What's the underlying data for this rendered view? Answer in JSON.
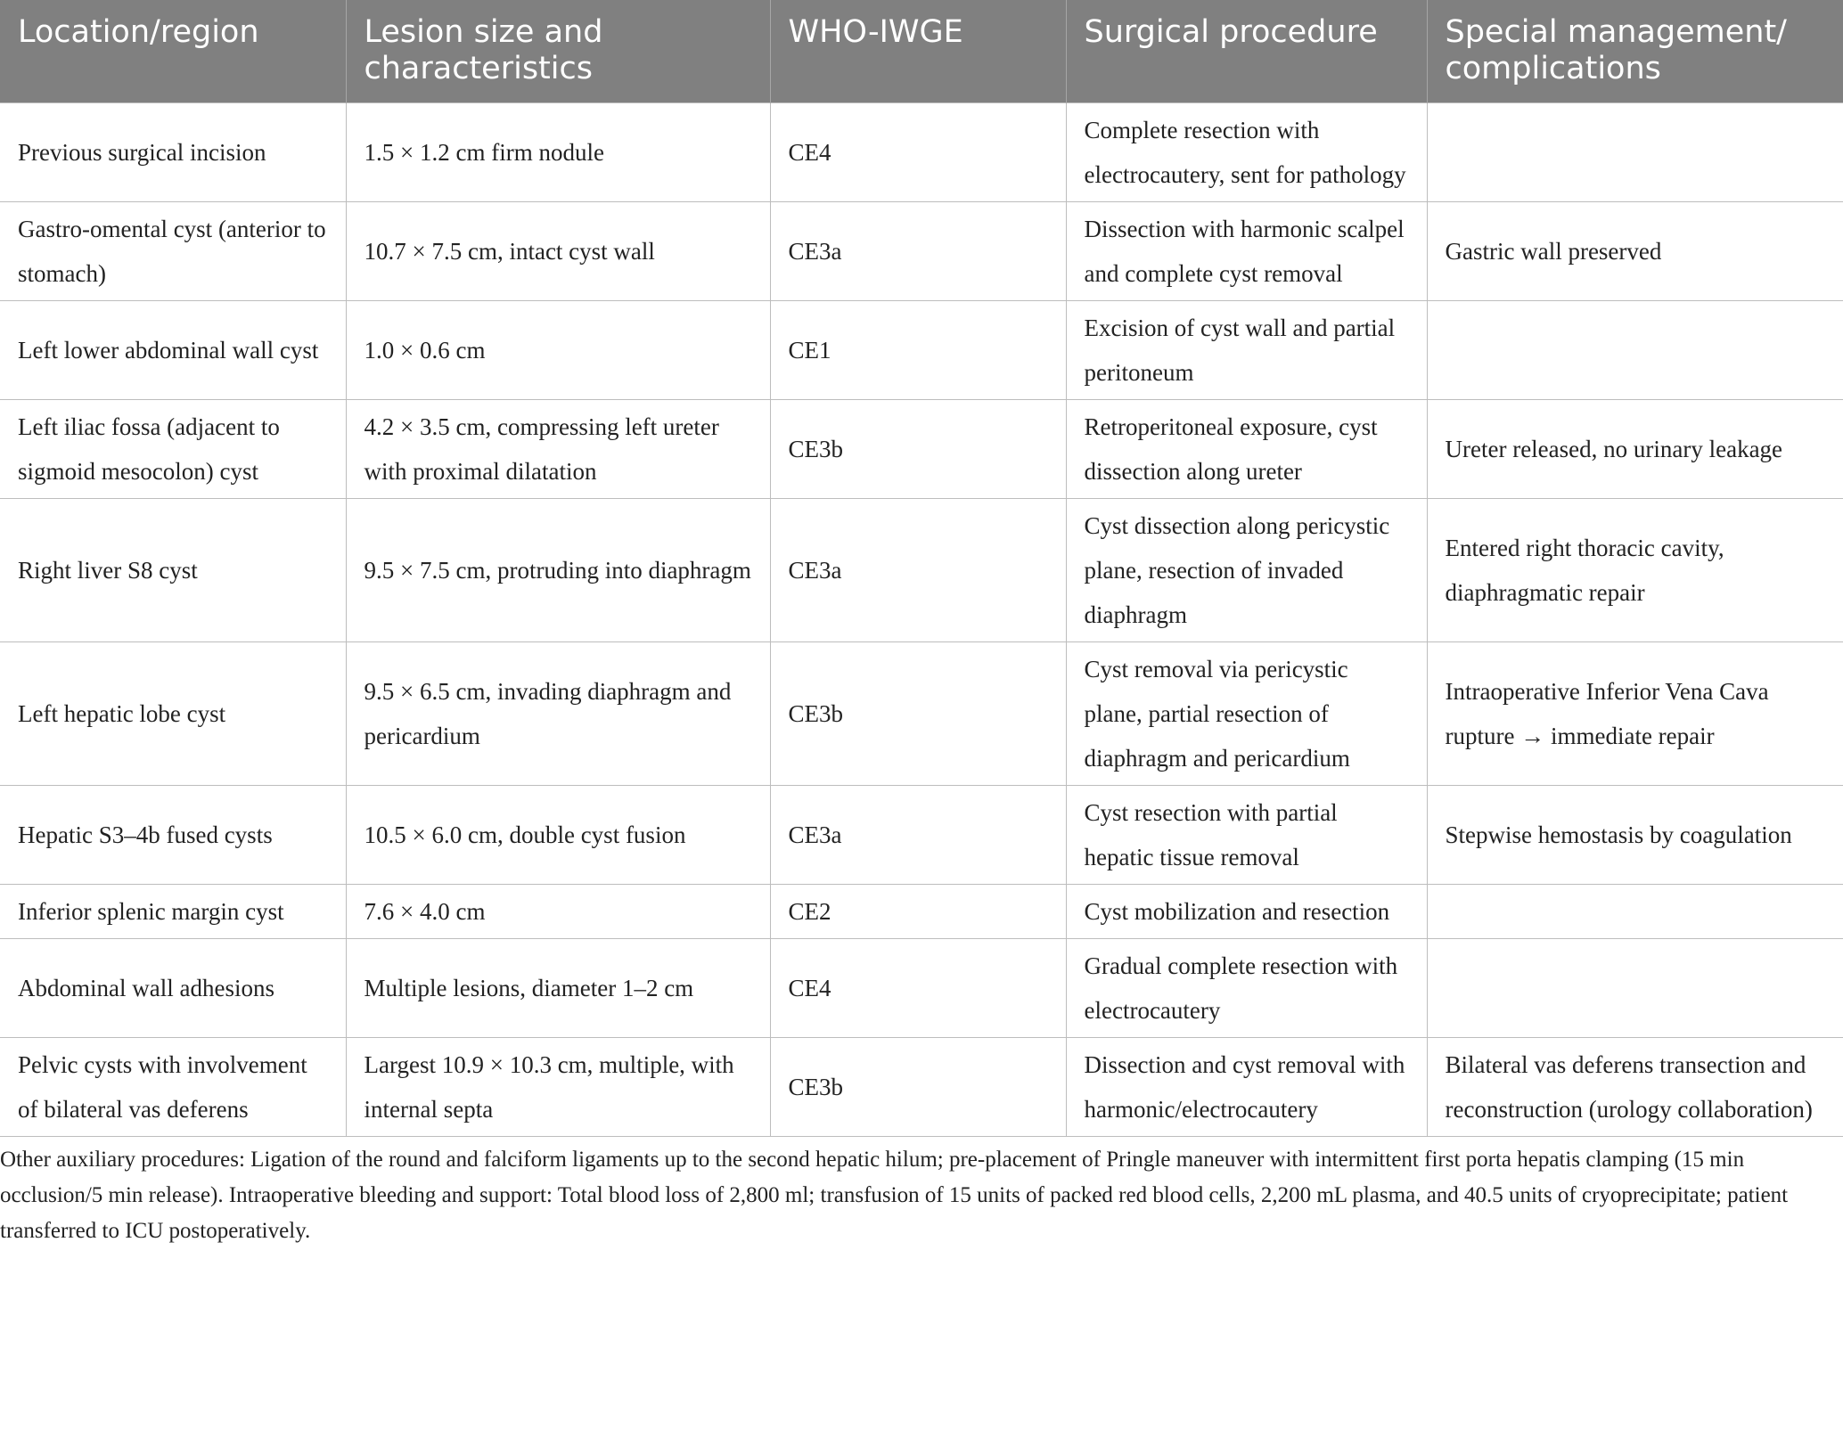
{
  "table": {
    "header": [
      "Location/region",
      "Lesion size and characteristics",
      "WHO-IWGE",
      "Surgical procedure",
      "Special management/ complications"
    ],
    "rows": [
      [
        "Previous surgical incision",
        "1.5 × 1.2 cm firm nodule",
        "CE4",
        "Complete resection with electrocautery, sent for pathology",
        null
      ],
      [
        "Gastro-omental cyst (anterior to stomach)",
        "10.7 × 7.5 cm, intact cyst wall",
        "CE3a",
        "Dissection with harmonic scalpel and complete cyst removal",
        "Gastric wall preserved"
      ],
      [
        "Left lower abdominal wall cyst",
        "1.0 × 0.6 cm",
        "CE1",
        "Excision of cyst wall and partial peritoneum",
        null
      ],
      [
        "Left iliac fossa (adjacent to sigmoid mesocolon) cyst",
        "4.2 × 3.5 cm, compressing left ureter with proximal dilatation",
        "CE3b",
        "Retroperitoneal exposure, cyst dissection along ureter",
        "Ureter released, no urinary leakage"
      ],
      [
        "Right liver S8 cyst",
        "9.5 × 7.5 cm, protruding into diaphragm",
        "CE3a",
        "Cyst dissection along pericystic plane, resection of invaded diaphragm",
        "Entered right thoracic cavity, diaphragmatic repair"
      ],
      [
        "Left hepatic lobe cyst",
        "9.5 × 6.5 cm, invading diaphragm and pericardium",
        "CE3b",
        "Cyst removal via pericystic plane, partial resection of diaphragm and pericardium",
        "Intraoperative Inferior Vena Cava rupture → immediate repair"
      ],
      [
        "Hepatic S3–4b fused cysts",
        "10.5 × 6.0 cm, double cyst fusion",
        "CE3a",
        "Cyst resection with partial hepatic tissue removal",
        "Stepwise hemostasis by coagulation"
      ],
      [
        "Inferior splenic margin cyst",
        "7.6 × 4.0 cm",
        "CE2",
        "Cyst mobilization and resection",
        null
      ],
      [
        "Abdominal wall adhesions",
        "Multiple lesions, diameter 1–2 cm",
        "CE4",
        "Gradual complete resection with electrocautery",
        null
      ],
      [
        "Pelvic cysts with involvement of bilateral vas deferens",
        "Largest 10.9 × 10.3 cm, multiple, with internal septa",
        "CE3b",
        "Dissection and cyst removal with harmonic/electrocautery",
        "Bilateral vas deferens transection and reconstruction (urology collaboration)"
      ]
    ]
  },
  "footnote": "Other auxiliary procedures: Ligation of the round and falciform ligaments up to the second hepatic hilum; pre-placement of Pringle maneuver with intermittent first porta hepatis clamping (15 min occlusion/5 min release). Intraoperative bleeding and support: Total blood loss of 2,800 ml; transfusion of 15 units of packed red blood cells, 2,200 mL plasma, and 40.5 units of cryoprecipitate; patient transferred to ICU postoperatively."
}
